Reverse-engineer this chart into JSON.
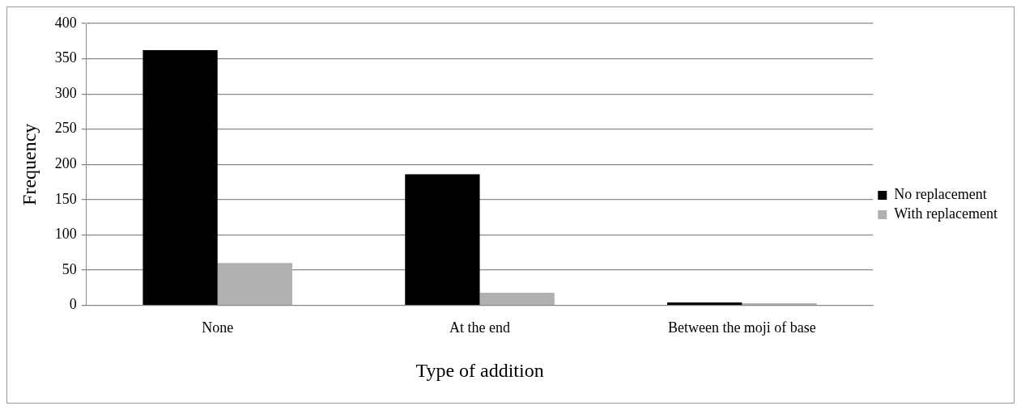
{
  "chart_data": {
    "type": "bar",
    "xlabel": "Type of addition",
    "ylabel": "Frequency",
    "categories": [
      "None",
      "At the end",
      "Between the moji of base"
    ],
    "series": [
      {
        "name": "No replacement",
        "color": "#000000",
        "values": [
          362,
          186,
          4
        ]
      },
      {
        "name": "With replacement",
        "color": "#b0b0b0",
        "values": [
          60,
          18,
          3
        ]
      }
    ],
    "ylim": [
      0,
      400
    ],
    "yticks": [
      0,
      50,
      100,
      150,
      200,
      250,
      300,
      350,
      400
    ],
    "grid": "y",
    "legend": "right"
  }
}
